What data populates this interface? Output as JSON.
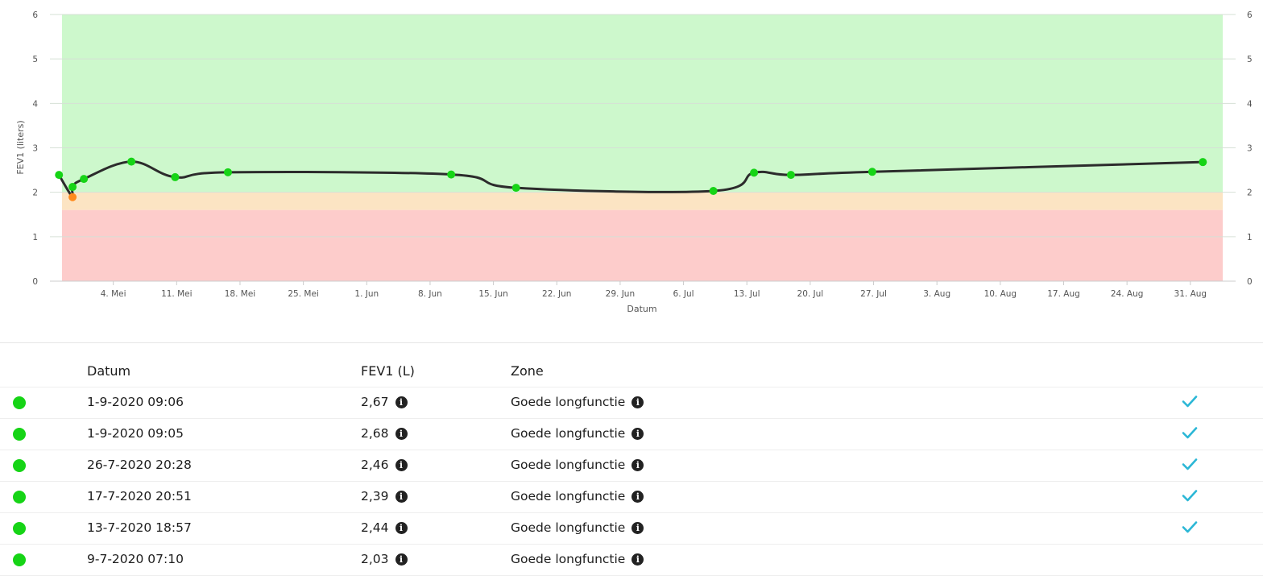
{
  "chart_data": {
    "type": "line",
    "xlabel": "Datum",
    "ylabel": "FEV1 (liters)",
    "ylim": [
      0,
      6
    ],
    "y_ticks": [
      "0",
      "1",
      "2",
      "3",
      "4",
      "5",
      "6"
    ],
    "y_ticks_right": [
      "0",
      "1",
      "2",
      "3",
      "4",
      "5",
      "6"
    ],
    "x_range": [
      "2020-04-27",
      "2020-09-05"
    ],
    "x_ticks": [
      {
        "date": "2020-05-04",
        "label": "4. Mei"
      },
      {
        "date": "2020-05-11",
        "label": "11. Mei"
      },
      {
        "date": "2020-05-18",
        "label": "18. Mei"
      },
      {
        "date": "2020-05-25",
        "label": "25. Mei"
      },
      {
        "date": "2020-06-01",
        "label": "1. Jun"
      },
      {
        "date": "2020-06-08",
        "label": "8. Jun"
      },
      {
        "date": "2020-06-15",
        "label": "15. Jun"
      },
      {
        "date": "2020-06-22",
        "label": "22. Jun"
      },
      {
        "date": "2020-06-29",
        "label": "29. Jun"
      },
      {
        "date": "2020-07-06",
        "label": "6. Jul"
      },
      {
        "date": "2020-07-13",
        "label": "13. Jul"
      },
      {
        "date": "2020-07-20",
        "label": "20. Jul"
      },
      {
        "date": "2020-07-27",
        "label": "27. Jul"
      },
      {
        "date": "2020-08-03",
        "label": "3. Aug"
      },
      {
        "date": "2020-08-10",
        "label": "10. Aug"
      },
      {
        "date": "2020-08-17",
        "label": "17. Aug"
      },
      {
        "date": "2020-08-24",
        "label": "24. Aug"
      },
      {
        "date": "2020-08-31",
        "label": "31. Aug"
      }
    ],
    "zones": [
      {
        "from": 2.0,
        "to": 6.0,
        "color": "#cdf8cc"
      },
      {
        "from": 1.6,
        "to": 2.0,
        "color": "#fce4c3"
      },
      {
        "from": 0.0,
        "to": 1.6,
        "color": "#fdcccb"
      }
    ],
    "line_color": "#2c2c2c",
    "points": [
      {
        "x": "2020-04-28",
        "y": 2.39,
        "status": "green"
      },
      {
        "x": "2020-04-29 12:00",
        "y": 1.89,
        "status": "orange"
      },
      {
        "x": "2020-04-29 12:00",
        "y": 2.12,
        "status": "green"
      },
      {
        "x": "2020-04-30 18:00",
        "y": 2.3,
        "status": "green"
      },
      {
        "x": "2020-05-06",
        "y": 2.69,
        "status": "green"
      },
      {
        "x": "2020-05-10 20:00",
        "y": 2.34,
        "status": "green"
      },
      {
        "x": "2020-05-16 16:00",
        "y": 2.45,
        "status": "green"
      },
      {
        "x": "2020-06-10 08:00",
        "y": 2.4,
        "status": "green"
      },
      {
        "x": "2020-06-17 12:00",
        "y": 2.1,
        "status": "green"
      },
      {
        "x": "2020-07-09 07:10",
        "y": 2.03,
        "status": "green"
      },
      {
        "x": "2020-07-13 18:57",
        "y": 2.44,
        "status": "green"
      },
      {
        "x": "2020-07-17 20:51",
        "y": 2.39,
        "status": "green"
      },
      {
        "x": "2020-07-26 20:28",
        "y": 2.46,
        "status": "green"
      },
      {
        "x": "2020-09-01 09:05",
        "y": 2.68,
        "status": "green"
      }
    ],
    "status_colors": {
      "green": "#16d416",
      "orange": "#ff8a1c"
    }
  },
  "table": {
    "headers": {
      "date": "Datum",
      "fev1": "FEV1 (L)",
      "zone": "Zone"
    },
    "rows": [
      {
        "date": "1-9-2020 09:06",
        "fev1": "2,67",
        "zone": "Goede longfunctie",
        "checked": true
      },
      {
        "date": "1-9-2020 09:05",
        "fev1": "2,68",
        "zone": "Goede longfunctie",
        "checked": true
      },
      {
        "date": "26-7-2020 20:28",
        "fev1": "2,46",
        "zone": "Goede longfunctie",
        "checked": true
      },
      {
        "date": "17-7-2020 20:51",
        "fev1": "2,39",
        "zone": "Goede longfunctie",
        "checked": true
      },
      {
        "date": "13-7-2020 18:57",
        "fev1": "2,44",
        "zone": "Goede longfunctie",
        "checked": true
      },
      {
        "date": "9-7-2020 07:10",
        "fev1": "2,03",
        "zone": "Goede longfunctie",
        "checked": false
      }
    ],
    "info_glyph": "i",
    "status_color": "#16d416",
    "check_color": "#2bb7d6"
  }
}
